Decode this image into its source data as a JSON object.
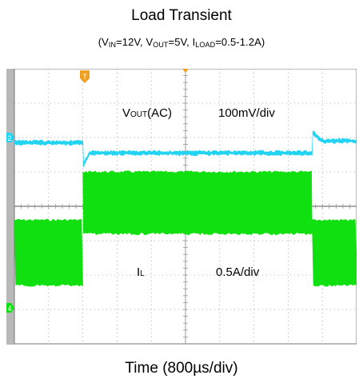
{
  "title": "Load Transient",
  "subtitle": {
    "p1": "(V",
    "s1": "IN",
    "p2": "=12V, V",
    "s2": "OUT",
    "p3": "=5V, I",
    "s3": "LOAD",
    "p4": "=0.5-1.2A)"
  },
  "xlabel": "Time (800µs/div)",
  "annotations": {
    "vout_main": "V",
    "vout_sub": "OUT",
    "vout_tail": "(AC)",
    "vout_scale": "100mV/div",
    "il_main": "I",
    "il_sub": "L",
    "il_scale": "0.5A/div"
  },
  "markers": {
    "trigger": "T",
    "ch2": "2",
    "ch4": "4"
  },
  "colors": {
    "background": "#ffffff",
    "grid": "#9a9a9a",
    "vout_trace": "#22d3f2",
    "il_trace": "#10e010",
    "trigger_marker": "#f0a020",
    "ch2_marker": "#22d3f2",
    "ch4_marker": "#10e010",
    "side_strip": "#b8b8b8"
  },
  "chart_data": {
    "type": "line",
    "title": "Load Transient",
    "subtitle": "(VIN=12V, VOUT=5V, ILOAD=0.5-1.2A)",
    "xlabel": "Time (800µs/div)",
    "ylabel": "",
    "x_divisions": 10,
    "y_divisions": 8,
    "grid": true,
    "series": [
      {
        "name": "VOUT(AC)",
        "scale": "100mV/div",
        "x_div": [
          0,
          2.0,
          2.02,
          2.2,
          8.7,
          8.72,
          9.0,
          10.0
        ],
        "y_div_from_top": [
          2.15,
          2.15,
          2.8,
          2.45,
          2.45,
          1.85,
          2.1,
          2.1
        ],
        "noise_band_div": 0.1
      },
      {
        "name": "IL",
        "scale": "0.5A/div",
        "x_div": [
          0,
          2.0,
          2.0,
          8.7,
          8.7,
          10.0
        ],
        "band_top_div_from_top": [
          4.4,
          4.4,
          3.0,
          3.0,
          4.4,
          4.4
        ],
        "band_bottom_div_from_top": [
          6.3,
          6.3,
          4.8,
          4.8,
          6.3,
          6.3
        ]
      }
    ]
  }
}
